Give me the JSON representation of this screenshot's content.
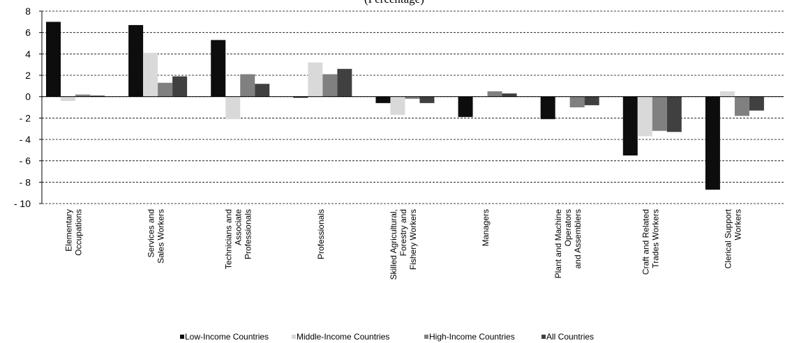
{
  "chart_data": {
    "type": "bar",
    "subtitle": "(Percentage)",
    "categories": [
      [
        "Elementary",
        "Occupations"
      ],
      [
        "Services and",
        "Sales Workers"
      ],
      [
        "Technicians and",
        "Associate",
        "Professionals"
      ],
      [
        "Professionals"
      ],
      [
        "Skilled Agricultural,",
        "Forestry and",
        "Fishery Workers"
      ],
      [
        "Managers"
      ],
      [
        "Plant and Machine",
        "Operators",
        "and Assemblers"
      ],
      [
        "Craft and Related",
        "Trades Workers"
      ],
      [
        "Clerical Support",
        "Workers"
      ]
    ],
    "series": [
      {
        "name": "Low-Income Countries",
        "color": "#0d0d0d",
        "values": [
          7.0,
          6.7,
          5.3,
          -0.1,
          -0.6,
          -1.9,
          -2.1,
          -5.5,
          -8.7
        ]
      },
      {
        "name": "Middle-Income Countries",
        "color": "#d9d9d9",
        "values": [
          -0.4,
          4.1,
          -2.1,
          3.2,
          -1.7,
          0.0,
          0.0,
          -3.7,
          0.5
        ]
      },
      {
        "name": "High-Income Countries",
        "color": "#808080",
        "values": [
          0.2,
          1.3,
          2.1,
          2.1,
          -0.2,
          0.5,
          -1.0,
          -3.2,
          -1.8
        ]
      },
      {
        "name": "All Countries",
        "color": "#404040",
        "values": [
          0.1,
          1.9,
          1.2,
          2.6,
          -0.6,
          0.3,
          -0.8,
          -3.3,
          -1.3
        ]
      }
    ],
    "ylim": [
      -10,
      8
    ],
    "yticks": [
      8,
      6,
      4,
      2,
      0,
      -2,
      -4,
      -6,
      -8,
      -10
    ],
    "ytick_labels": [
      "8",
      "6",
      "4",
      "2",
      "0",
      "- 2",
      "- 4",
      "- 6",
      "- 8",
      "- 10"
    ],
    "grid": true,
    "legend_position": "bottom"
  }
}
